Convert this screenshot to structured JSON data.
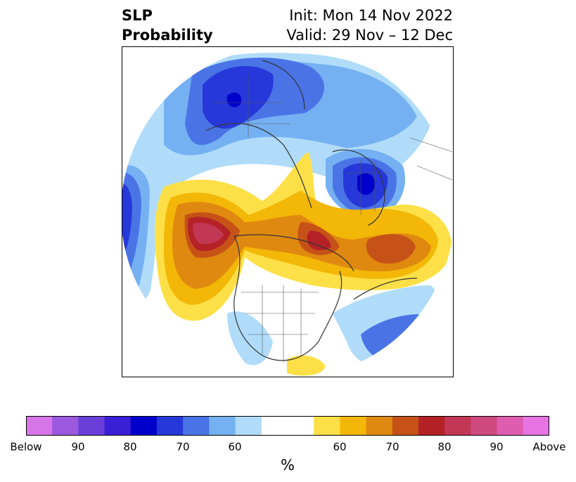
{
  "header": {
    "title_line1": "SLP",
    "title_line2": "Probability",
    "init_label": "Init: Mon 14 Nov 2022",
    "valid_label": "Valid: 29 Nov – 12 Dec"
  },
  "colorbar": {
    "colors": [
      "#d675e8",
      "#9b59e0",
      "#6a3fd9",
      "#3a1fd6",
      "#0000cc",
      "#2638d9",
      "#4a74e6",
      "#75b1f2",
      "#b0dcfa",
      "#ffffff",
      "#ffffff",
      "#fde047",
      "#f3b707",
      "#e08910",
      "#c65217",
      "#b42227",
      "#c23753",
      "#cf4a7f",
      "#df5daf",
      "#e774e3"
    ],
    "tick_labels": [
      "Below",
      "90",
      "80",
      "70",
      "60",
      "60",
      "70",
      "80",
      "90",
      "Above"
    ],
    "unit_label": "%"
  },
  "colors": {
    "below_strong": "#0000cc",
    "below_moderate": "#2638d9",
    "below_light": "#75b1f2",
    "above_light": "#fde047",
    "above_moderate": "#e08910",
    "above_strong": "#b42227",
    "above_extreme": "#c23753"
  }
}
